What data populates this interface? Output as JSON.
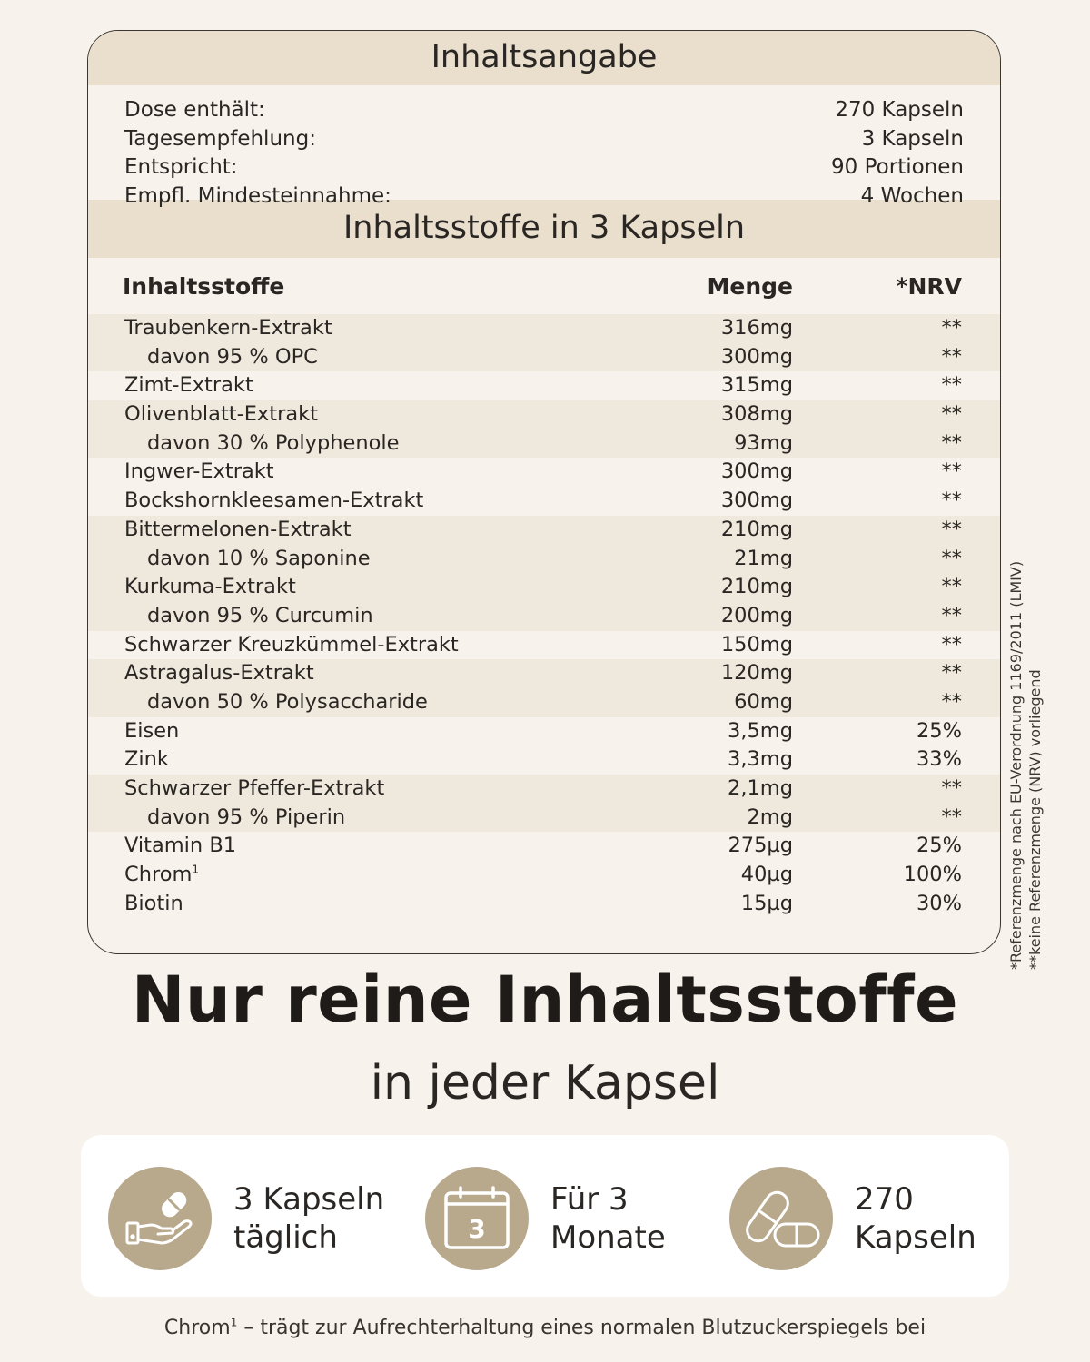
{
  "header": {
    "title": "Inhaltsangabe"
  },
  "info": [
    {
      "label": "Dose enthält:",
      "value": "270 Kapseln"
    },
    {
      "label": "Tagesempfehlung:",
      "value": "3 Kapseln"
    },
    {
      "label": "Entspricht:",
      "value": "90 Portionen"
    },
    {
      "label": "Empfl. Mindesteinnahme:",
      "value": "4 Wochen"
    }
  ],
  "section": {
    "title": "Inhaltsstoffe in 3 Kapseln"
  },
  "table": {
    "headers": {
      "name": "Inhaltsstoffe",
      "amount": "Menge",
      "nrv": "*NRV"
    },
    "rows": [
      {
        "name": "Traubenkern-Extrakt",
        "amount": "316mg",
        "nrv": "**"
      },
      {
        "name": "davon 95 % OPC",
        "amount": "300mg",
        "nrv": "**"
      },
      {
        "name": "Zimt-Extrakt",
        "amount": "315mg",
        "nrv": "**"
      },
      {
        "name": "Olivenblatt-Extrakt",
        "amount": "308mg",
        "nrv": "**"
      },
      {
        "name": "davon 30 % Polyphenole",
        "amount": "93mg",
        "nrv": "**"
      },
      {
        "name": "Ingwer-Extrakt",
        "amount": "300mg",
        "nrv": "**"
      },
      {
        "name": "Bockshornkleesamen-Extrakt",
        "amount": "300mg",
        "nrv": "**"
      },
      {
        "name": "Bittermelonen-Extrakt",
        "amount": "210mg",
        "nrv": "**"
      },
      {
        "name": "davon 10 % Saponine",
        "amount": "21mg",
        "nrv": "**"
      },
      {
        "name": "Kurkuma-Extrakt",
        "amount": "210mg",
        "nrv": "**"
      },
      {
        "name": "davon 95 % Curcumin",
        "amount": "200mg",
        "nrv": "**"
      },
      {
        "name": "Schwarzer Kreuzkümmel-Extrakt",
        "amount": "150mg",
        "nrv": "**"
      },
      {
        "name": "Astragalus-Extrakt",
        "amount": "120mg",
        "nrv": "**"
      },
      {
        "name": "davon 50 % Polysaccharide",
        "amount": "60mg",
        "nrv": "**"
      },
      {
        "name": "Eisen",
        "amount": "3,5mg",
        "nrv": "25%"
      },
      {
        "name": "Zink",
        "amount": "3,3mg",
        "nrv": "33%"
      },
      {
        "name": "Schwarzer Pfeffer-Extrakt",
        "amount": "2,1mg",
        "nrv": "**"
      },
      {
        "name": "davon 95 % Piperin",
        "amount": "2mg",
        "nrv": "**"
      },
      {
        "name": "Vitamin B1",
        "amount": "275µg",
        "nrv": "25%"
      },
      {
        "name": "Chrom",
        "sup": "1",
        "amount": "40µg",
        "nrv": "100%"
      },
      {
        "name": "Biotin",
        "amount": "15µg",
        "nrv": "30%"
      }
    ]
  },
  "side_notes": {
    "line1": "*Referenzmenge nach EU-Verordnung 1169/2011 (LMIV)",
    "line2": "**keine Referenzmenge (NRV) vorliegend"
  },
  "headline": "Nur reine Inhaltsstoffe",
  "subheadline": "in jeder Kapsel",
  "features": [
    {
      "icon": "hand-capsule-icon",
      "line1": "3 Kapseln",
      "line2": "täglich"
    },
    {
      "icon": "calendar-icon",
      "calendar_number": "3",
      "line1": "Für 3",
      "line2": "Monate"
    },
    {
      "icon": "capsules-icon",
      "line1": "270",
      "line2": "Kapseln"
    }
  ],
  "footnote": {
    "name": "Chrom",
    "sup": "1",
    "text": " – trägt zur Aufrechterhaltung eines normalen Blutzuckerspiegels bei"
  },
  "colors": {
    "band": "#e9dfcc",
    "shade": "#efe8dc",
    "accent": "#b8a98d",
    "background": "#f7f3ec"
  }
}
